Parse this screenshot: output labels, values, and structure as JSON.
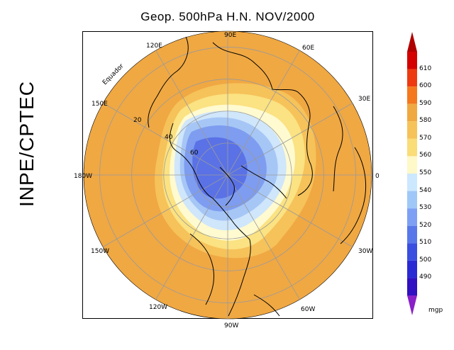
{
  "title": "Geop. 500hPa H.N. NOV/2000",
  "side_label": "INPE/CPTEC",
  "map": {
    "longitude_labels": [
      "90E",
      "60E",
      "30E",
      "0",
      "30W",
      "60W",
      "90W",
      "120W",
      "150W",
      "180W",
      "150E",
      "120E"
    ],
    "latitude_labels": [
      "Equador",
      "20",
      "40",
      "60"
    ]
  },
  "colorbar": {
    "levels": [
      "610",
      "600",
      "590",
      "580",
      "570",
      "560",
      "550",
      "540",
      "530",
      "520",
      "510",
      "500",
      "490"
    ],
    "unit": "mgp",
    "colors": [
      "#d40000",
      "#ee3a10",
      "#f4781e",
      "#f0a840",
      "#f6c25a",
      "#fadc78",
      "#fff8c8",
      "#cce8ff",
      "#9fc8f8",
      "#7ea0f4",
      "#5878ea",
      "#3a4ee0",
      "#2a2ad4",
      "#3010c0"
    ],
    "top_color": "#b00000",
    "bottom_color": "#8a20c8"
  },
  "colors": {
    "ocean_fill": "#f0a843",
    "band_570": "#f6c25a",
    "band_560": "#fbe282",
    "band_550": "#fffad0",
    "band_540": "#cfe6fb",
    "band_530": "#a6c6f6",
    "band_520": "#7e9df0",
    "band_510": "#5a72e6"
  }
}
